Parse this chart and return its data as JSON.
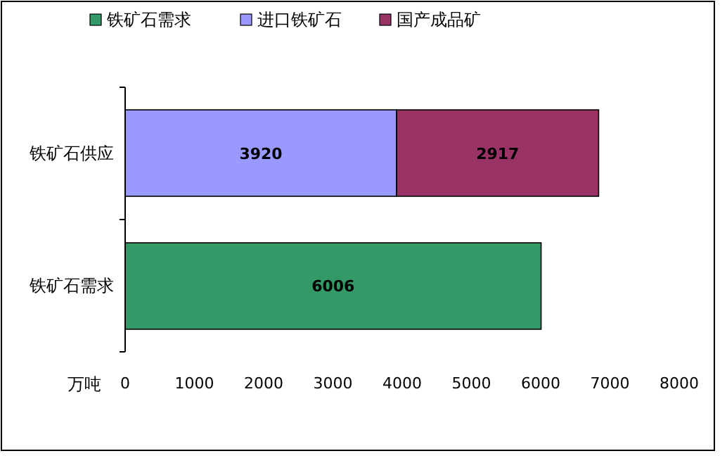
{
  "chart_data": {
    "type": "bar",
    "orientation": "horizontal",
    "stacked": true,
    "data_labels": true,
    "legend": "top",
    "grid": false,
    "xlabel": "万吨",
    "categories": [
      "铁矿石供应",
      "铁矿石需求"
    ],
    "series": [
      {
        "name": "铁矿石需求",
        "color": "#339966",
        "values": [
          null,
          6006
        ]
      },
      {
        "name": "进口铁矿石",
        "color": "#9999ff",
        "values": [
          3920,
          null
        ]
      },
      {
        "name": "国产成品矿",
        "color": "#993366",
        "values": [
          2917,
          null
        ]
      }
    ],
    "xlim": [
      0,
      8000
    ],
    "xticks": [
      0,
      1000,
      2000,
      3000,
      4000,
      5000,
      6000,
      7000,
      8000
    ]
  }
}
